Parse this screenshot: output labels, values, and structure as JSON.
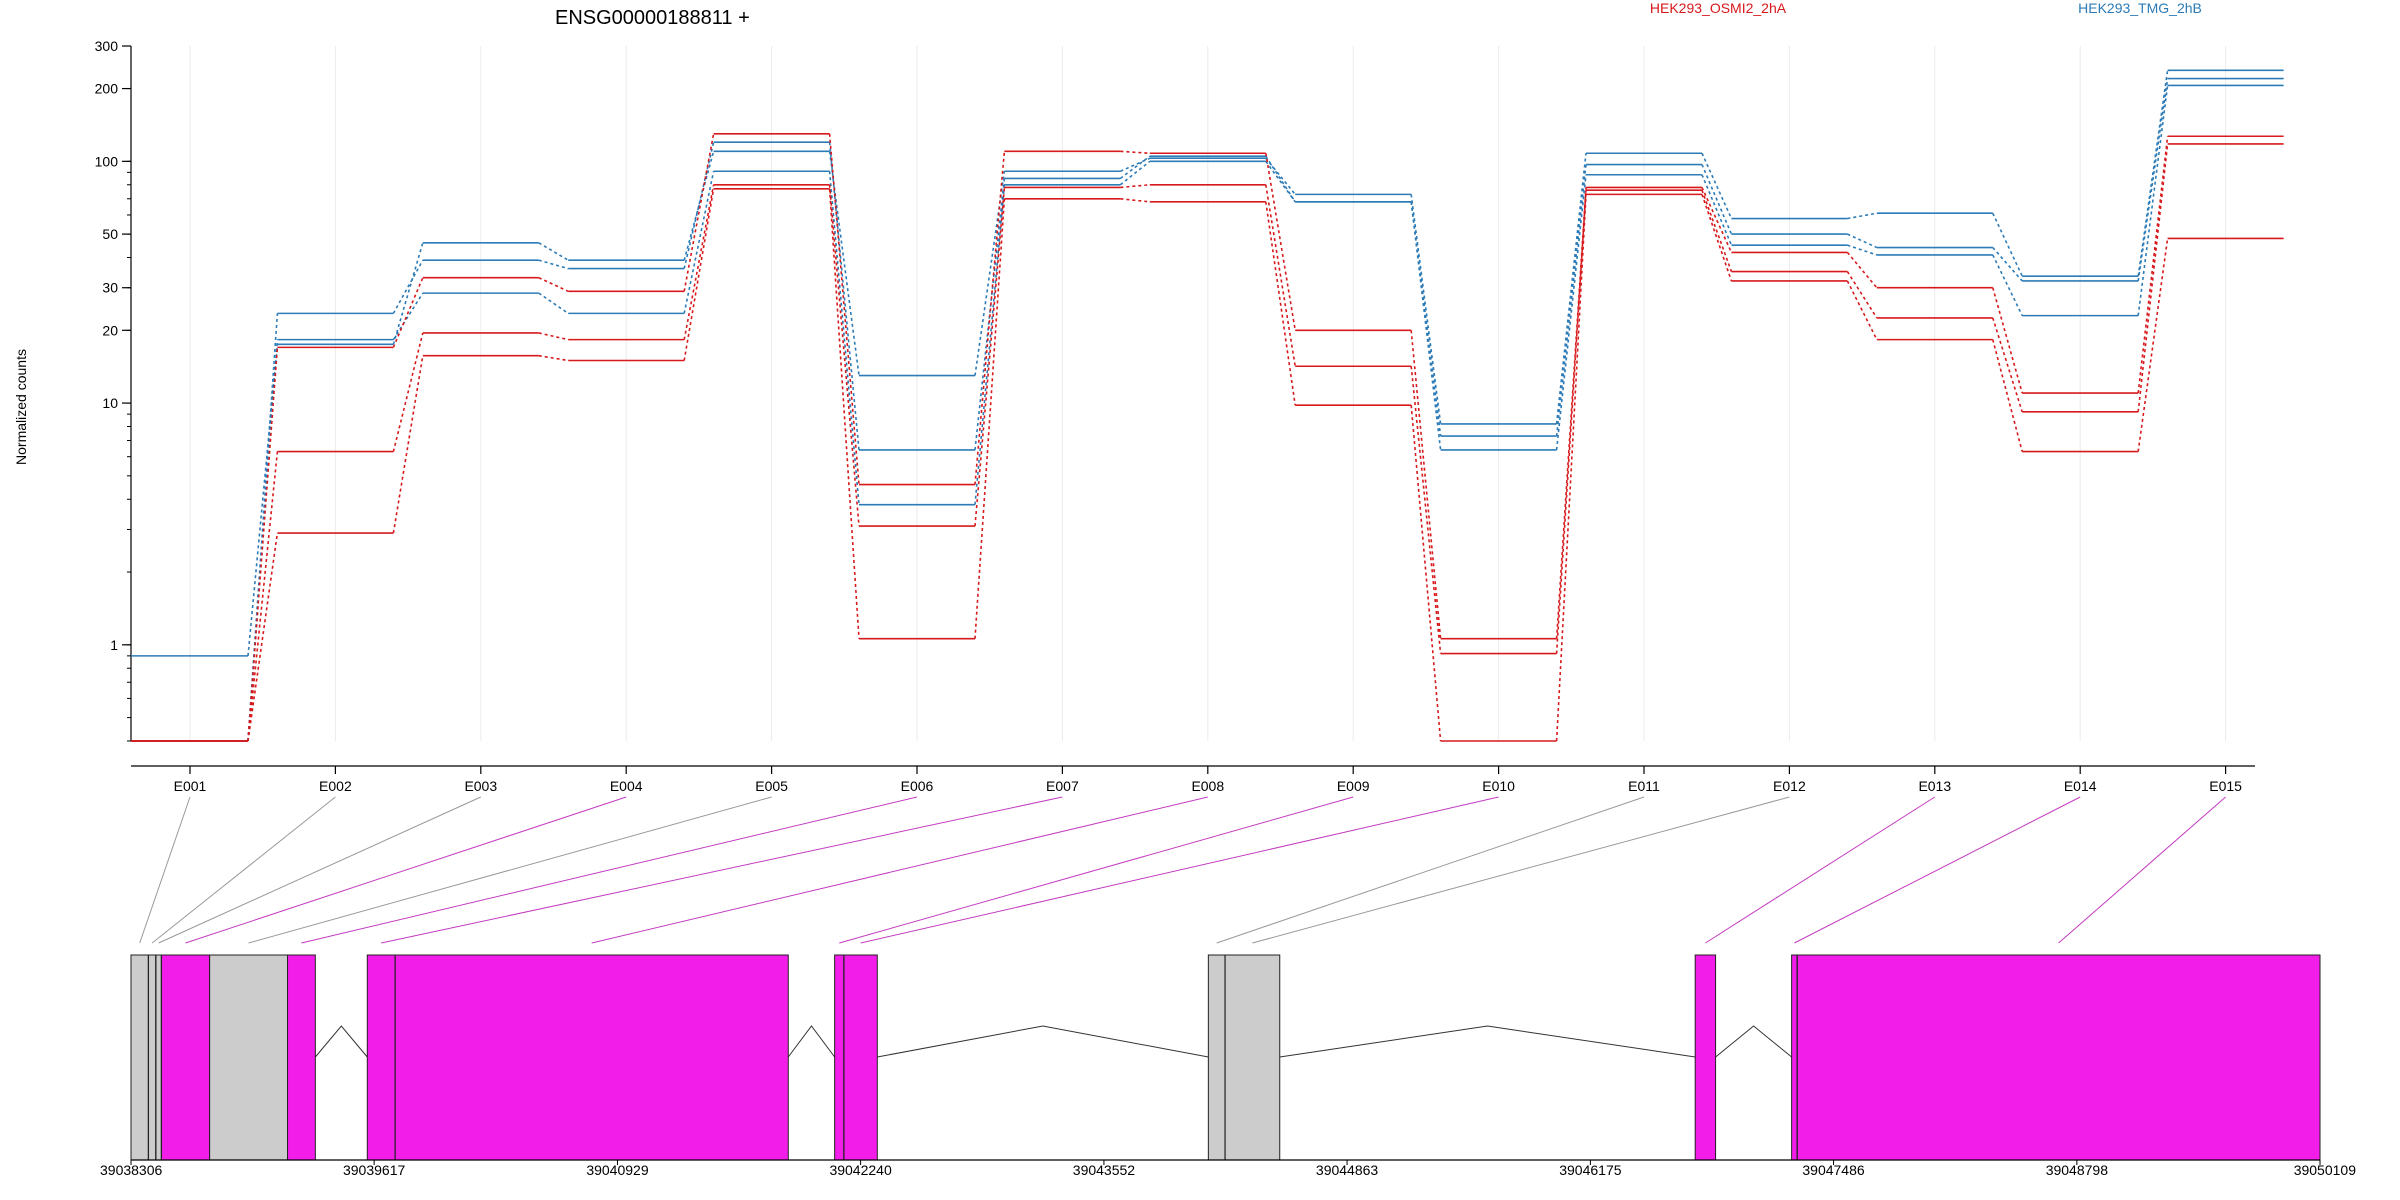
{
  "chart_data": {
    "type": "line",
    "title": "ENSG00000188811 +",
    "ylabel": "Normalized counts",
    "yscale": "log",
    "ylim": [
      0.4,
      300
    ],
    "y_ticks": [
      1,
      10,
      20,
      30,
      50,
      100,
      200,
      300
    ],
    "y_tick_labels": [
      "1",
      "10",
      "20",
      "30",
      "50",
      "100",
      "200",
      "300"
    ],
    "categories": [
      "E001",
      "E002",
      "E003",
      "E004",
      "E005",
      "E006",
      "E007",
      "E008",
      "E009",
      "E010",
      "E011",
      "E012",
      "E013",
      "E014",
      "E015"
    ],
    "legend": [
      {
        "name": "HEK293_OSMI2_2hA",
        "color": "#d7191c"
      },
      {
        "name": "HEK293_TMG_2hB",
        "color": "#2c7bb6"
      }
    ],
    "series": [
      {
        "group": "HEK293_TMG_2hB",
        "color": "#2c7bb6",
        "values": [
          0.9,
          17.5,
          46,
          39,
          110,
          13,
          91,
          103,
          73,
          8.2,
          108,
          58,
          61,
          33.5,
          238
        ]
      },
      {
        "group": "HEK293_TMG_2hB",
        "color": "#2c7bb6",
        "values": [
          0.4,
          23.5,
          39,
          36,
          120,
          6.4,
          85,
          105,
          68,
          7.3,
          97,
          50,
          44,
          32,
          220
        ]
      },
      {
        "group": "HEK293_TMG_2hB",
        "color": "#2c7bb6",
        "values": [
          0.4,
          18.3,
          28.5,
          23.5,
          91,
          3.8,
          80,
          100,
          68,
          6.4,
          88,
          45,
          41,
          23,
          206
        ]
      },
      {
        "group": "HEK293_OSMI2_2hA",
        "color": "#d7191c",
        "values": [
          0.4,
          17,
          33,
          29,
          130,
          4.6,
          110,
          108,
          20,
          1.06,
          78,
          42,
          30,
          11,
          127
        ]
      },
      {
        "group": "HEK293_OSMI2_2hA",
        "color": "#d7191c",
        "values": [
          0.4,
          6.3,
          19.5,
          18.3,
          80,
          3.1,
          78,
          80,
          14.2,
          0.92,
          76,
          35,
          22.5,
          9.2,
          118
        ]
      },
      {
        "group": "HEK293_OSMI2_2hA",
        "color": "#d7191c",
        "values": [
          0.4,
          2.9,
          15.7,
          15,
          77,
          1.06,
          70,
          68,
          9.8,
          0.4,
          73,
          32,
          18.3,
          6.3,
          48
        ]
      }
    ],
    "gene_model": {
      "coord_ticks": [
        "39038306",
        "39039617",
        "39040929",
        "39042240",
        "39043552",
        "39044863",
        "39046175",
        "39047486",
        "39048798",
        "39050109"
      ],
      "exon_bins": [
        {
          "id": "E001",
          "start": 39038306,
          "end": 39038400,
          "color": "#cccccc"
        },
        {
          "id": "E002",
          "start": 39038400,
          "end": 39038440,
          "color": "#cccccc"
        },
        {
          "id": "E003",
          "start": 39038440,
          "end": 39038470,
          "color": "#cccccc"
        },
        {
          "id": "E004",
          "start": 39038470,
          "end": 39038730,
          "color": "#f21de8"
        },
        {
          "id": "E005",
          "start": 39038730,
          "end": 39039150,
          "color": "#cccccc"
        },
        {
          "id": "E006",
          "start": 39039150,
          "end": 39039300,
          "color": "#f21de8"
        },
        {
          "id": "E007",
          "start": 39039580,
          "end": 39039730,
          "color": "#f21de8"
        },
        {
          "id": "E008",
          "start": 39039730,
          "end": 39041850,
          "color": "#f21de8"
        },
        {
          "id": "E009",
          "start": 39042100,
          "end": 39042150,
          "color": "#f21de8"
        },
        {
          "id": "E010",
          "start": 39042150,
          "end": 39042330,
          "color": "#f21de8"
        },
        {
          "id": "E011",
          "start": 39044115,
          "end": 39044205,
          "color": "#cccccc"
        },
        {
          "id": "E012",
          "start": 39044205,
          "end": 39044500,
          "color": "#cccccc"
        },
        {
          "id": "E013",
          "start": 39046740,
          "end": 39046850,
          "color": "#f21de8"
        },
        {
          "id": "E014",
          "start": 39047260,
          "end": 39047290,
          "color": "#f21de8"
        },
        {
          "id": "E015",
          "start": 39047290,
          "end": 39050109,
          "color": "#f21de8"
        }
      ],
      "exon_dividers": [
        39038400,
        39038440,
        39038470,
        39039730,
        39042150,
        39044205,
        39047290
      ],
      "introns": [
        {
          "start": 39039300,
          "end": 39039580
        },
        {
          "start": 39041850,
          "end": 39042100
        },
        {
          "start": 39042330,
          "end": 39044115
        },
        {
          "start": 39044500,
          "end": 39046740
        },
        {
          "start": 39046850,
          "end": 39047260
        }
      ]
    }
  }
}
